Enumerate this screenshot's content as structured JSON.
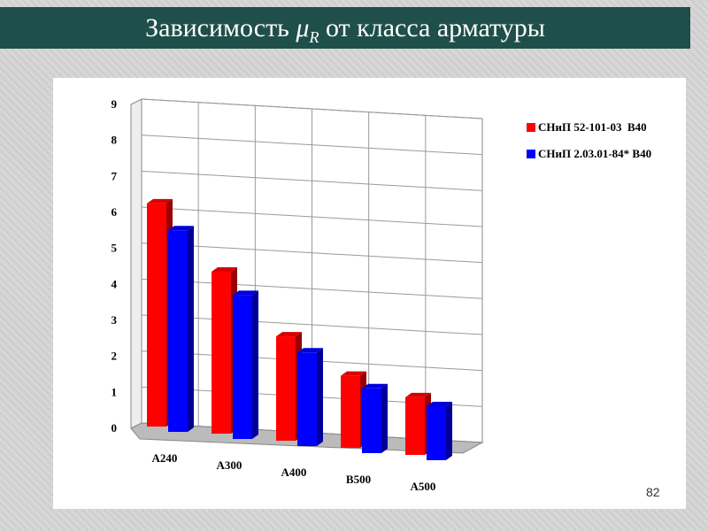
{
  "chart_data": {
    "type": "bar3d",
    "title": {
      "prefix": "Зависимость ",
      "symbol": "μ",
      "subscript": "R",
      "suffix": " от класса арматуры"
    },
    "categories": [
      "А240",
      "А300",
      "А400",
      "В500",
      "А500"
    ],
    "series": [
      {
        "name": "СНиП 52-101-03  В40",
        "color": "#ff0000",
        "values": [
          6.2,
          4.5,
          2.9,
          2.0,
          1.6
        ]
      },
      {
        "name": "СНиП 2.03.01-84* В40",
        "color": "#0000ff",
        "values": [
          5.6,
          4.0,
          2.6,
          1.8,
          1.5
        ]
      }
    ],
    "ylim": [
      0,
      9
    ],
    "yticks": [
      0,
      1,
      2,
      3,
      4,
      5,
      6,
      7,
      8,
      9
    ],
    "grid": true,
    "legend": "right"
  },
  "slide_number": "82"
}
